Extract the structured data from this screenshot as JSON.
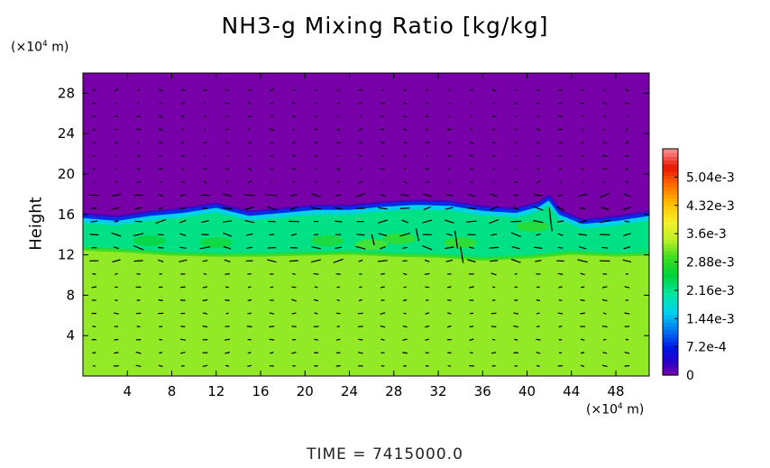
{
  "chart_data": {
    "type": "heatmap",
    "title": "NH3-g Mixing Ratio [kg/kg]",
    "ylabel": "Height",
    "xunit": {
      "prefix": "(×10",
      "exp": "4",
      "suffix": " m)"
    },
    "yunit": {
      "prefix": "(×10",
      "exp": "4",
      "suffix": " m)"
    },
    "xlim": [
      0,
      51
    ],
    "ylim": [
      0,
      30
    ],
    "x_ticks": [
      4,
      8,
      12,
      16,
      20,
      24,
      28,
      32,
      36,
      40,
      44,
      48
    ],
    "y_ticks": [
      4,
      8,
      12,
      16,
      20,
      24,
      28
    ],
    "colorbar": {
      "range": [
        0,
        0.00576
      ],
      "tick_values": [
        0,
        0.00072,
        0.00144,
        0.00216,
        0.00288,
        0.0036,
        0.00432,
        0.00504
      ],
      "tick_labels": [
        "0",
        "7.2e-4",
        "1.44e-3",
        "2.16e-3",
        "2.88e-3",
        "3.6e-3",
        "4.32e-3",
        "5.04e-3"
      ]
    },
    "layers": {
      "upper_value": 0.0,
      "lower_value": 0.0033,
      "mid_value": 0.0022,
      "cloud_top_km": [
        [
          0,
          16.1
        ],
        [
          3,
          15.8
        ],
        [
          6,
          16.3
        ],
        [
          9,
          16.6
        ],
        [
          12,
          17.1
        ],
        [
          15,
          16.3
        ],
        [
          18,
          16.6
        ],
        [
          21,
          16.9
        ],
        [
          24,
          16.9
        ],
        [
          27,
          17.2
        ],
        [
          30,
          17.4
        ],
        [
          33,
          17.3
        ],
        [
          36,
          16.8
        ],
        [
          39,
          16.6
        ],
        [
          41,
          17.2
        ],
        [
          42,
          17.9
        ],
        [
          43,
          16.4
        ],
        [
          45,
          15.5
        ],
        [
          48,
          15.8
        ],
        [
          51,
          16.3
        ]
      ],
      "cloud_base_km": [
        [
          0,
          12.6
        ],
        [
          4,
          12.4
        ],
        [
          8,
          12.1
        ],
        [
          12,
          12.0
        ],
        [
          16,
          12.0
        ],
        [
          20,
          12.1
        ],
        [
          24,
          12.2
        ],
        [
          28,
          12.0
        ],
        [
          32,
          11.9
        ],
        [
          36,
          11.6
        ],
        [
          40,
          11.8
        ],
        [
          44,
          12.2
        ],
        [
          48,
          12.0
        ],
        [
          51,
          12.1
        ]
      ]
    },
    "vectors": {
      "x_spacing": 2,
      "y_spacing": 1.3,
      "x_start": 1,
      "y_start": 1
    }
  },
  "footer": "TIME  =  7415000.0"
}
